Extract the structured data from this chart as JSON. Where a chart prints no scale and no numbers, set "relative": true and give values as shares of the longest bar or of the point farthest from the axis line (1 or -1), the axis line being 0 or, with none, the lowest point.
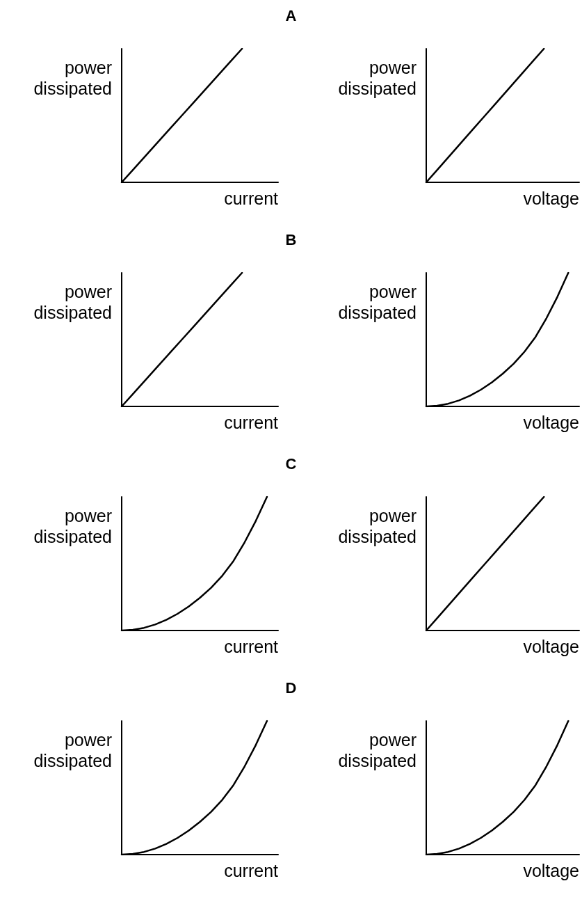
{
  "chart_data": [
    {
      "type": "other",
      "title": "A"
    },
    {
      "type": "line",
      "xlabel": "current",
      "ylabel": "power\ndissipated",
      "relative": true,
      "categories": [
        null,
        null,
        null,
        null,
        null,
        null,
        null,
        null,
        null,
        null,
        null,
        null,
        null,
        null
      ],
      "values": [
        0,
        0.1,
        0.2,
        0.3,
        0.4,
        0.5,
        0.6,
        0.7,
        0.8,
        0.9,
        1,
        null,
        null,
        null
      ],
      "color": "#000000",
      "marker": "none",
      "line_style": "solid"
    },
    {
      "type": "line",
      "xlabel": "voltage",
      "ylabel": "power\ndissipated",
      "relative": true,
      "categories": [
        null,
        null,
        null,
        null,
        null,
        null,
        null,
        null,
        null,
        null,
        null,
        null,
        null,
        null
      ],
      "values": [
        0,
        0.1,
        0.2,
        0.3,
        0.4,
        0.5,
        0.6,
        0.7,
        0.8,
        0.9,
        1,
        null,
        null,
        null
      ],
      "color": "#000000",
      "marker": "none",
      "line_style": "solid"
    },
    {
      "type": "other",
      "title": "B"
    },
    {
      "type": "line",
      "xlabel": "current",
      "ylabel": "power\ndissipated",
      "relative": true,
      "categories": [
        null,
        null,
        null,
        null,
        null,
        null,
        null,
        null,
        null,
        null,
        null,
        null,
        null,
        null
      ],
      "values": [
        0,
        0.1,
        0.2,
        0.3,
        0.4,
        0.5,
        0.6,
        0.7,
        0.8,
        0.9,
        1,
        null,
        null,
        null
      ],
      "color": "#000000",
      "marker": "none",
      "line_style": "solid"
    },
    {
      "type": "line",
      "xlabel": "voltage",
      "ylabel": "power\ndissipated",
      "relative": true,
      "categories": [
        null,
        null,
        null,
        null,
        null,
        null,
        null,
        null,
        null,
        null,
        null,
        null,
        null,
        null,
        null
      ],
      "values": [
        0,
        0.005,
        0.02,
        0.045,
        0.08,
        0.125,
        0.18,
        0.245,
        0.32,
        0.41,
        0.52,
        0.66,
        0.82,
        1,
        null
      ],
      "color": "#000000",
      "marker": "none",
      "line_style": "solid"
    },
    {
      "type": "other",
      "title": "C"
    },
    {
      "type": "line",
      "xlabel": "current",
      "ylabel": "power\ndissipated",
      "relative": true,
      "categories": [
        null,
        null,
        null,
        null,
        null,
        null,
        null,
        null,
        null,
        null,
        null,
        null,
        null,
        null,
        null
      ],
      "values": [
        0,
        0.005,
        0.02,
        0.045,
        0.08,
        0.125,
        0.18,
        0.245,
        0.32,
        0.41,
        0.52,
        0.66,
        0.82,
        1,
        null
      ],
      "color": "#000000",
      "marker": "none",
      "line_style": "solid"
    },
    {
      "type": "line",
      "xlabel": "voltage",
      "ylabel": "power\ndissipated",
      "relative": true,
      "categories": [
        null,
        null,
        null,
        null,
        null,
        null,
        null,
        null,
        null,
        null,
        null,
        null,
        null,
        null
      ],
      "values": [
        0,
        0.1,
        0.2,
        0.3,
        0.4,
        0.5,
        0.6,
        0.7,
        0.8,
        0.9,
        1,
        null,
        null,
        null
      ],
      "color": "#000000",
      "marker": "none",
      "line_style": "solid"
    },
    {
      "type": "other",
      "title": "D"
    },
    {
      "type": "line",
      "xlabel": "current",
      "ylabel": "power\ndissipated",
      "relative": true,
      "categories": [
        null,
        null,
        null,
        null,
        null,
        null,
        null,
        null,
        null,
        null,
        null,
        null,
        null,
        null,
        null
      ],
      "values": [
        0,
        0.005,
        0.02,
        0.045,
        0.08,
        0.125,
        0.18,
        0.245,
        0.32,
        0.41,
        0.52,
        0.66,
        0.82,
        1,
        null
      ],
      "color": "#000000",
      "marker": "none",
      "line_style": "solid"
    },
    {
      "type": "line",
      "xlabel": "voltage",
      "ylabel": "power\ndissipated",
      "relative": true,
      "categories": [
        null,
        null,
        null,
        null,
        null,
        null,
        null,
        null,
        null,
        null,
        null,
        null,
        null,
        null,
        null
      ],
      "values": [
        0,
        0.005,
        0.02,
        0.045,
        0.08,
        0.125,
        0.18,
        0.245,
        0.32,
        0.41,
        0.52,
        0.66,
        0.82,
        1,
        null
      ],
      "color": "#000000",
      "marker": "none",
      "line_style": "solid"
    }
  ]
}
